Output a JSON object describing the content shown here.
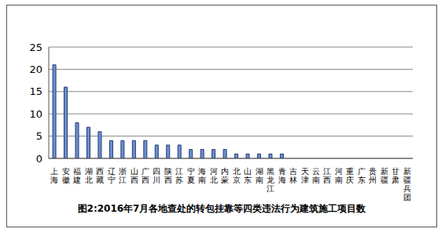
{
  "chart_data": {
    "type": "bar",
    "title": "图2:2016年7月各地查处的转包挂靠等四类违法行为建筑施工项目数",
    "categories": [
      "上海",
      "安徽",
      "福建",
      "湖北",
      "西藏",
      "辽宁",
      "浙江",
      "山西",
      "广西",
      "四川",
      "陕西",
      "江苏",
      "宁夏",
      "海南",
      "河北",
      "内蒙",
      "北京",
      "山东",
      "湖南",
      "黑龙江",
      "青海",
      "吉林",
      "天津",
      "云南",
      "江西",
      "河南",
      "重庆",
      "广东",
      "贵州",
      "新疆",
      "甘肃",
      "新疆兵团"
    ],
    "values": [
      21,
      16,
      8,
      7,
      6,
      4,
      4,
      4,
      4,
      3,
      3,
      3,
      2,
      2,
      2,
      2,
      1,
      1,
      1,
      1,
      1,
      0,
      0,
      0,
      0,
      0,
      0,
      0,
      0,
      0,
      0,
      0
    ],
    "color": "#6f8fd0",
    "ylim": [
      0,
      25
    ],
    "yticks": [
      0,
      5,
      10,
      15,
      20,
      25
    ],
    "grid": true
  }
}
